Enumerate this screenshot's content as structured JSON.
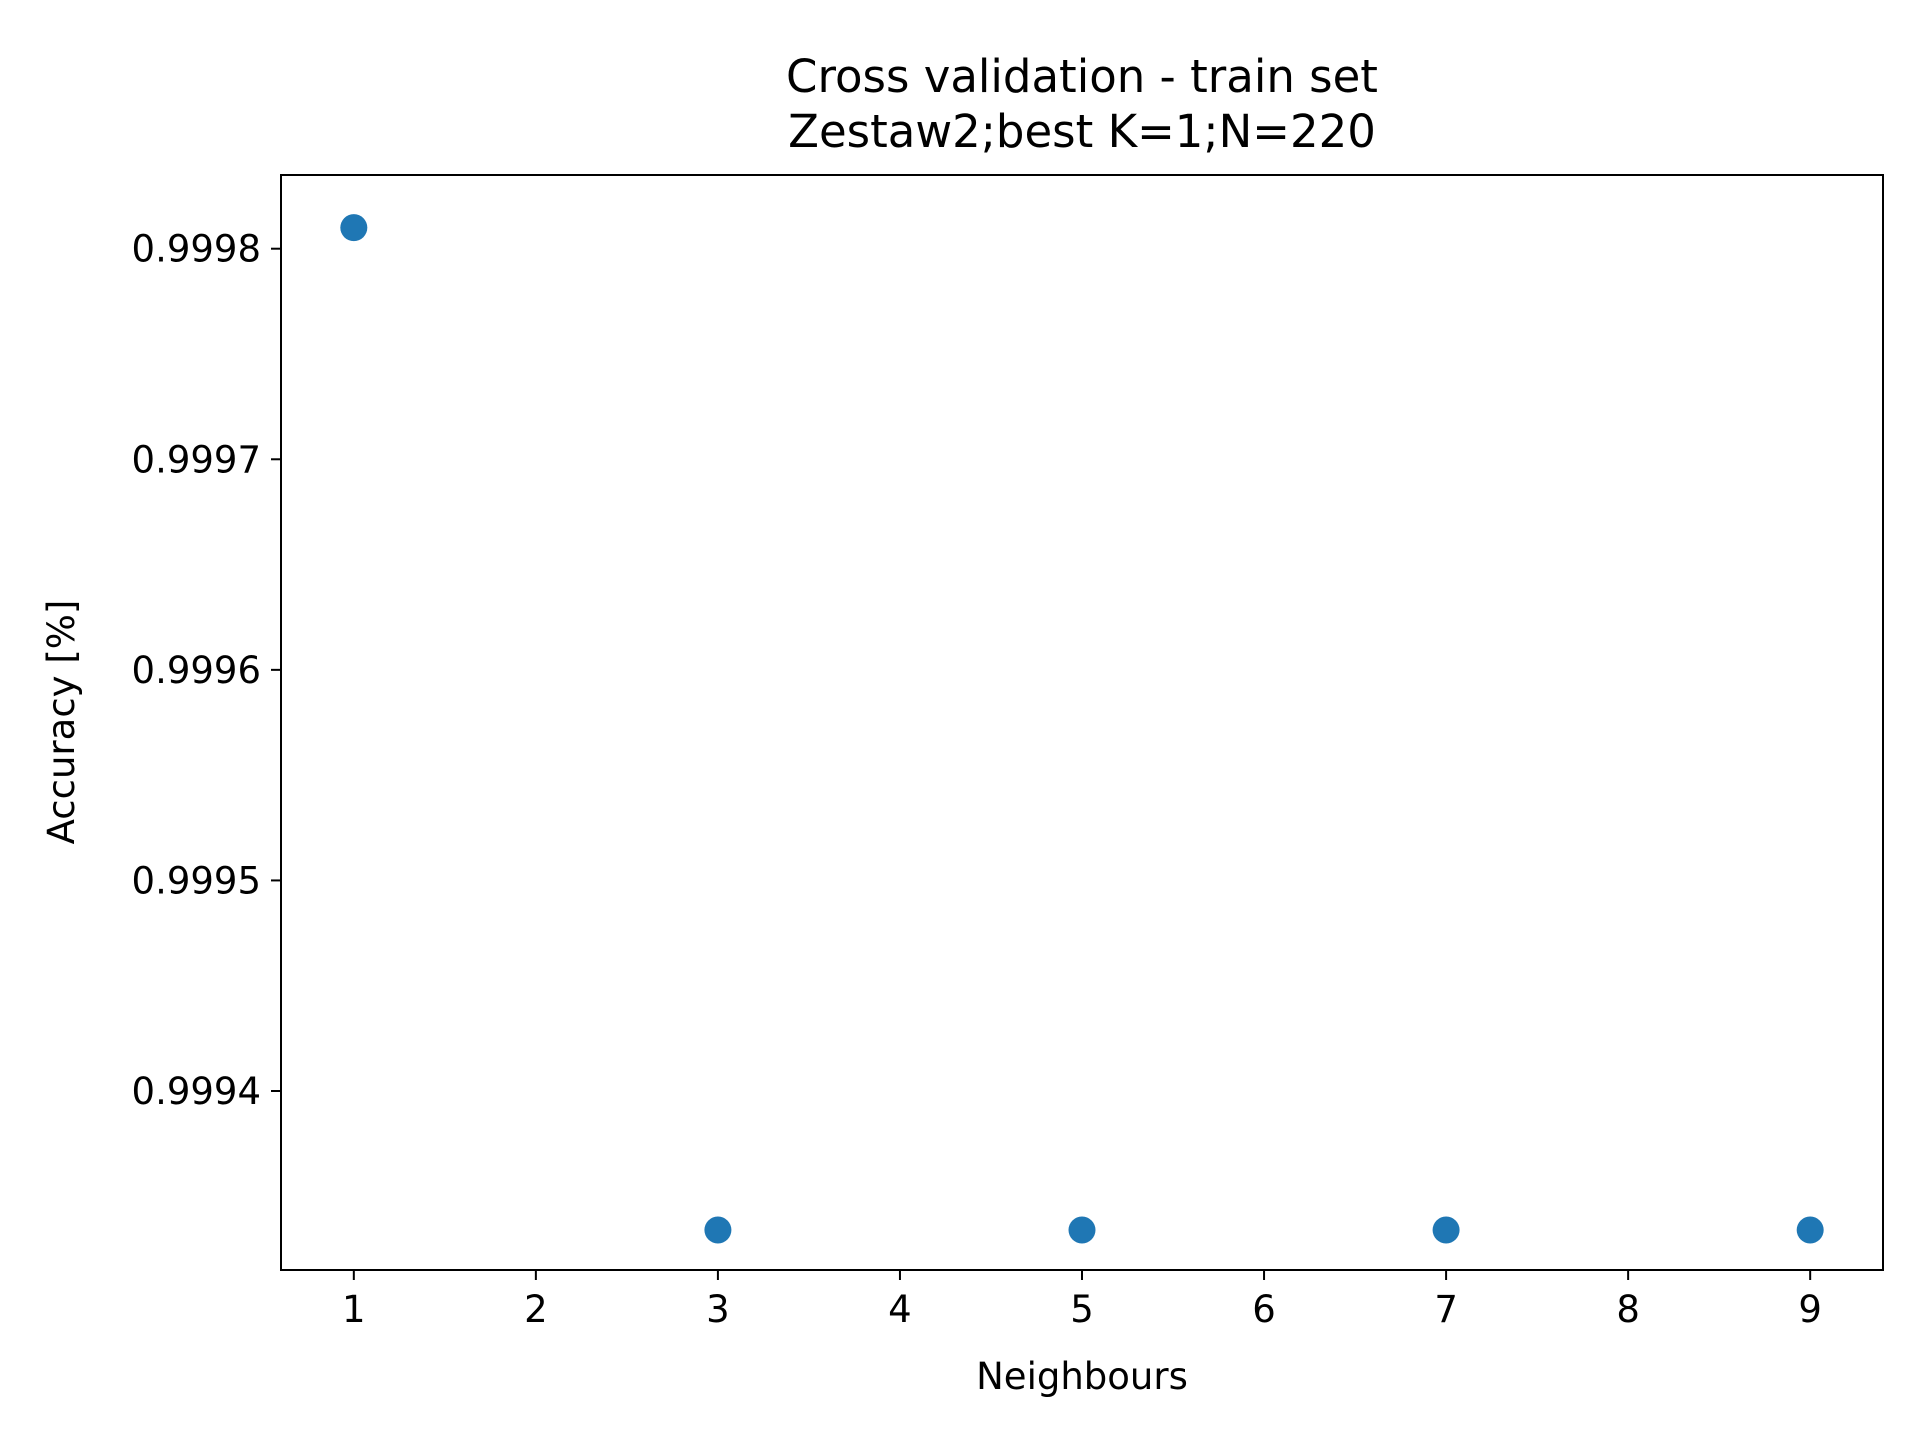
{
  "chart_data": {
    "type": "scatter",
    "title": "Cross validation - train set",
    "subtitle": "Zestaw2;best K=1;N=220",
    "xlabel": "Neighbours",
    "ylabel": "Accuracy [%]",
    "x": [
      1,
      3,
      5,
      7,
      9
    ],
    "y": [
      0.99981,
      0.999334,
      0.999334,
      0.999334,
      0.999334
    ],
    "xlim": [
      0.6,
      9.4
    ],
    "ylim": [
      0.999315,
      0.999835
    ],
    "x_ticks": [
      1,
      2,
      3,
      4,
      5,
      6,
      7,
      8,
      9
    ],
    "x_tick_labels": [
      "1",
      "2",
      "3",
      "4",
      "5",
      "6",
      "7",
      "8",
      "9"
    ],
    "y_ticks": [
      0.9994,
      0.9995,
      0.9996,
      0.9997,
      0.9998
    ],
    "y_tick_labels": [
      "0.9994",
      "0.9995",
      "0.9996",
      "0.9997",
      "0.9998"
    ],
    "grid": false,
    "legend": "none",
    "marker_color": "#1f77b4"
  }
}
